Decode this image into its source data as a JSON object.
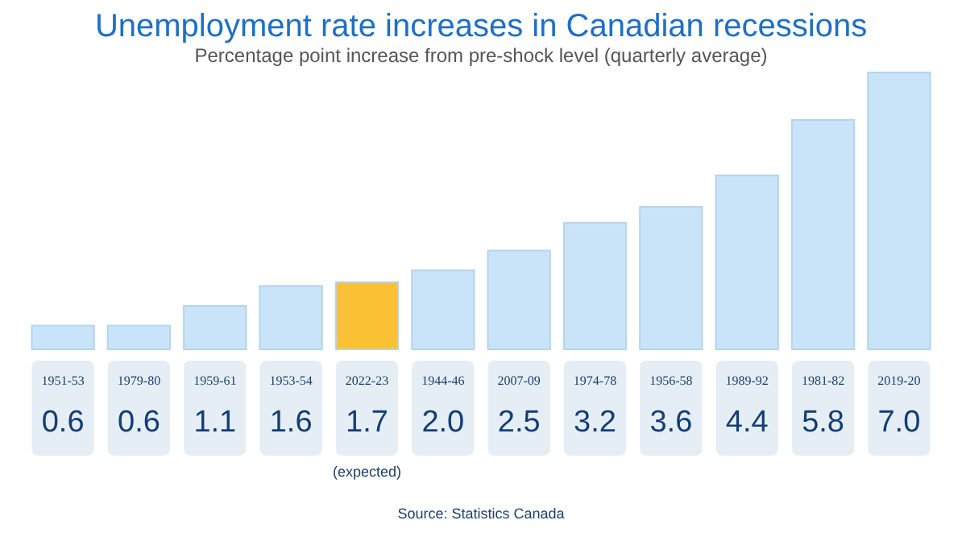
{
  "chart_data": {
    "type": "bar",
    "title": "Unemployment rate increases in Canadian recessions",
    "subtitle": "Percentage point increase from pre-shock level (quarterly average)",
    "categories": [
      "1951-53",
      "1979-80",
      "1959-61",
      "1953-54",
      "2022-23",
      "1944-46",
      "2007-09",
      "1974-78",
      "1956-58",
      "1989-92",
      "1981-82",
      "2019-20"
    ],
    "values": [
      0.6,
      0.6,
      1.1,
      1.6,
      1.7,
      2.0,
      2.5,
      3.2,
      3.6,
      4.4,
      5.8,
      7.0
    ],
    "colors": [
      "#c9e3f8",
      "#c9e3f8",
      "#c9e3f8",
      "#c9e3f8",
      "#f9c133",
      "#c9e3f8",
      "#c9e3f8",
      "#c9e3f8",
      "#c9e3f8",
      "#c9e3f8",
      "#c9e3f8",
      "#c9e3f8"
    ],
    "value_labels": [
      "0.6",
      "0.6",
      "1.1",
      "1.6",
      "1.7",
      "2.0",
      "2.5",
      "3.2",
      "3.6",
      "4.4",
      "5.8",
      "7.0"
    ],
    "annotations": [
      "(expected)",
      "Source: Statistics Canada"
    ]
  }
}
